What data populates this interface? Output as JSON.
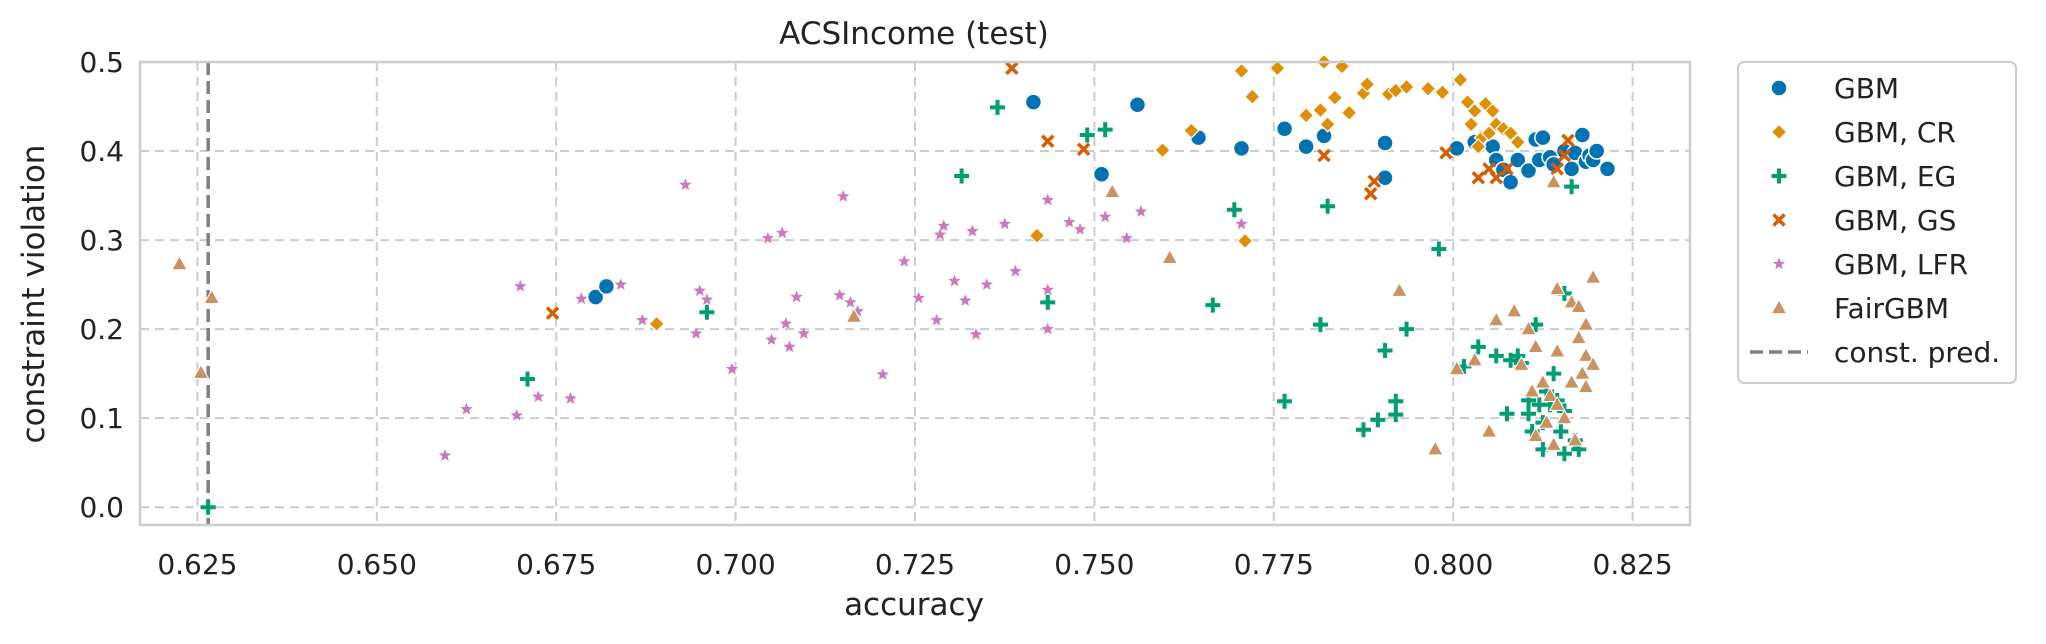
{
  "chart_data": {
    "type": "scatter",
    "title": "ACSIncome (test)",
    "xlabel": "accuracy",
    "ylabel": "constraint violation",
    "xlim": [
      0.617,
      0.833
    ],
    "ylim": [
      -0.02,
      0.5
    ],
    "xticks": [
      "0.625",
      "0.650",
      "0.675",
      "0.700",
      "0.725",
      "0.750",
      "0.775",
      "0.800",
      "0.825"
    ],
    "yticks": [
      "0.0",
      "0.1",
      "0.2",
      "0.3",
      "0.4",
      "0.5"
    ],
    "grid": true,
    "legend_position": "outside-right-top",
    "reference_lines": [
      {
        "name": "const. pred.",
        "orientation": "vertical",
        "x": 0.6265,
        "color": "#7f7f7f",
        "style": "dashed"
      }
    ],
    "series": [
      {
        "name": "GBM",
        "marker": "circle",
        "color": "#0173b2",
        "points": [
          [
            0.6805,
            0.236
          ],
          [
            0.682,
            0.248
          ],
          [
            0.7415,
            0.455
          ],
          [
            0.751,
            0.374
          ],
          [
            0.756,
            0.452
          ],
          [
            0.7645,
            0.415
          ],
          [
            0.7705,
            0.403
          ],
          [
            0.7765,
            0.425
          ],
          [
            0.7795,
            0.405
          ],
          [
            0.782,
            0.417
          ],
          [
            0.7905,
            0.37
          ],
          [
            0.7905,
            0.409
          ],
          [
            0.8005,
            0.403
          ],
          [
            0.803,
            0.41
          ],
          [
            0.8055,
            0.405
          ],
          [
            0.806,
            0.39
          ],
          [
            0.807,
            0.379
          ],
          [
            0.808,
            0.365
          ],
          [
            0.809,
            0.39
          ],
          [
            0.8105,
            0.378
          ],
          [
            0.8115,
            0.413
          ],
          [
            0.812,
            0.39
          ],
          [
            0.8125,
            0.415
          ],
          [
            0.8135,
            0.393
          ],
          [
            0.814,
            0.385
          ],
          [
            0.8155,
            0.4
          ],
          [
            0.8165,
            0.38
          ],
          [
            0.817,
            0.398
          ],
          [
            0.818,
            0.418
          ],
          [
            0.8185,
            0.388
          ],
          [
            0.819,
            0.395
          ],
          [
            0.8195,
            0.39
          ],
          [
            0.82,
            0.4
          ],
          [
            0.8215,
            0.38
          ]
        ]
      },
      {
        "name": "GBM, CR",
        "marker": "diamond",
        "color": "#de8f05",
        "points": [
          [
            0.689,
            0.206
          ],
          [
            0.742,
            0.305
          ],
          [
            0.7595,
            0.401
          ],
          [
            0.7635,
            0.423
          ],
          [
            0.7705,
            0.49
          ],
          [
            0.771,
            0.299
          ],
          [
            0.772,
            0.461
          ],
          [
            0.7755,
            0.493
          ],
          [
            0.7795,
            0.44
          ],
          [
            0.7815,
            0.446
          ],
          [
            0.782,
            0.5
          ],
          [
            0.7825,
            0.43
          ],
          [
            0.7835,
            0.46
          ],
          [
            0.7845,
            0.495
          ],
          [
            0.7855,
            0.443
          ],
          [
            0.7875,
            0.465
          ],
          [
            0.788,
            0.475
          ],
          [
            0.791,
            0.464
          ],
          [
            0.792,
            0.468
          ],
          [
            0.7935,
            0.472
          ],
          [
            0.7965,
            0.47
          ],
          [
            0.7985,
            0.466
          ],
          [
            0.801,
            0.48
          ],
          [
            0.802,
            0.455
          ],
          [
            0.8025,
            0.43
          ],
          [
            0.803,
            0.445
          ],
          [
            0.804,
            0.415
          ],
          [
            0.8045,
            0.453
          ],
          [
            0.805,
            0.42
          ],
          [
            0.8055,
            0.445
          ],
          [
            0.806,
            0.43
          ],
          [
            0.807,
            0.425
          ],
          [
            0.808,
            0.42
          ],
          [
            0.809,
            0.41
          ],
          [
            0.8035,
            0.405
          ]
        ]
      },
      {
        "name": "GBM, EG",
        "marker": "plus",
        "color": "#029e73",
        "points": [
          [
            0.6265,
            0.0
          ],
          [
            0.671,
            0.144
          ],
          [
            0.696,
            0.219
          ],
          [
            0.7315,
            0.372
          ],
          [
            0.7365,
            0.449
          ],
          [
            0.7435,
            0.23
          ],
          [
            0.749,
            0.418
          ],
          [
            0.7515,
            0.424
          ],
          [
            0.7665,
            0.227
          ],
          [
            0.7695,
            0.334
          ],
          [
            0.7765,
            0.119
          ],
          [
            0.7815,
            0.205
          ],
          [
            0.7825,
            0.338
          ],
          [
            0.7875,
            0.087
          ],
          [
            0.7895,
            0.098
          ],
          [
            0.7905,
            0.176
          ],
          [
            0.792,
            0.104
          ],
          [
            0.792,
            0.119
          ],
          [
            0.7935,
            0.2
          ],
          [
            0.798,
            0.29
          ],
          [
            0.8015,
            0.158
          ],
          [
            0.8035,
            0.18
          ],
          [
            0.806,
            0.17
          ],
          [
            0.8075,
            0.105
          ],
          [
            0.808,
            0.165
          ],
          [
            0.809,
            0.17
          ],
          [
            0.8095,
            0.162
          ],
          [
            0.8105,
            0.12
          ],
          [
            0.8105,
            0.105
          ],
          [
            0.811,
            0.085
          ],
          [
            0.8115,
            0.205
          ],
          [
            0.812,
            0.115
          ],
          [
            0.8125,
            0.095
          ],
          [
            0.8125,
            0.065
          ],
          [
            0.813,
            0.13
          ],
          [
            0.8135,
            0.115
          ],
          [
            0.814,
            0.15
          ],
          [
            0.8145,
            0.12
          ],
          [
            0.815,
            0.085
          ],
          [
            0.8155,
            0.108
          ],
          [
            0.8155,
            0.06
          ],
          [
            0.8155,
            0.24
          ],
          [
            0.8165,
            0.36
          ],
          [
            0.817,
            0.075
          ],
          [
            0.8175,
            0.065
          ]
        ]
      },
      {
        "name": "GBM, GS",
        "marker": "x",
        "color": "#d55e00",
        "points": [
          [
            0.6745,
            0.218
          ],
          [
            0.7385,
            0.493
          ],
          [
            0.7435,
            0.411
          ],
          [
            0.7485,
            0.402
          ],
          [
            0.782,
            0.395
          ],
          [
            0.7885,
            0.352
          ],
          [
            0.789,
            0.366
          ],
          [
            0.799,
            0.398
          ],
          [
            0.8035,
            0.37
          ],
          [
            0.805,
            0.38
          ],
          [
            0.806,
            0.37
          ],
          [
            0.8075,
            0.38
          ],
          [
            0.8145,
            0.38
          ],
          [
            0.816,
            0.412
          ],
          [
            0.8155,
            0.395
          ]
        ]
      },
      {
        "name": "GBM, LFR",
        "marker": "star",
        "color": "#cc78bc",
        "points": [
          [
            0.6595,
            0.058
          ],
          [
            0.6625,
            0.11
          ],
          [
            0.6695,
            0.103
          ],
          [
            0.67,
            0.248
          ],
          [
            0.6725,
            0.124
          ],
          [
            0.677,
            0.122
          ],
          [
            0.6785,
            0.234
          ],
          [
            0.684,
            0.25
          ],
          [
            0.687,
            0.21
          ],
          [
            0.693,
            0.362
          ],
          [
            0.6945,
            0.195
          ],
          [
            0.695,
            0.243
          ],
          [
            0.696,
            0.233
          ],
          [
            0.6995,
            0.155
          ],
          [
            0.7045,
            0.302
          ],
          [
            0.705,
            0.188
          ],
          [
            0.7065,
            0.308
          ],
          [
            0.707,
            0.206
          ],
          [
            0.7075,
            0.18
          ],
          [
            0.7085,
            0.236
          ],
          [
            0.7095,
            0.195
          ],
          [
            0.7145,
            0.238
          ],
          [
            0.715,
            0.349
          ],
          [
            0.716,
            0.23
          ],
          [
            0.717,
            0.22
          ],
          [
            0.7205,
            0.149
          ],
          [
            0.7235,
            0.276
          ],
          [
            0.7255,
            0.235
          ],
          [
            0.728,
            0.21
          ],
          [
            0.7285,
            0.306
          ],
          [
            0.729,
            0.316
          ],
          [
            0.7305,
            0.254
          ],
          [
            0.732,
            0.232
          ],
          [
            0.733,
            0.31
          ],
          [
            0.7335,
            0.194
          ],
          [
            0.735,
            0.25
          ],
          [
            0.7375,
            0.318
          ],
          [
            0.739,
            0.265
          ],
          [
            0.7435,
            0.345
          ],
          [
            0.7435,
            0.244
          ],
          [
            0.7435,
            0.2
          ],
          [
            0.7465,
            0.32
          ],
          [
            0.748,
            0.312
          ],
          [
            0.7515,
            0.326
          ],
          [
            0.7545,
            0.302
          ],
          [
            0.7565,
            0.332
          ],
          [
            0.7705,
            0.318
          ]
        ]
      },
      {
        "name": "FairGBM",
        "marker": "triangle",
        "color": "#ca9161",
        "points": [
          [
            0.6225,
            0.273
          ],
          [
            0.6255,
            0.151
          ],
          [
            0.627,
            0.235
          ],
          [
            0.7165,
            0.214
          ],
          [
            0.7525,
            0.354
          ],
          [
            0.7605,
            0.28
          ],
          [
            0.7925,
            0.243
          ],
          [
            0.7975,
            0.065
          ],
          [
            0.8005,
            0.155
          ],
          [
            0.803,
            0.165
          ],
          [
            0.805,
            0.085
          ],
          [
            0.806,
            0.21
          ],
          [
            0.8085,
            0.22
          ],
          [
            0.8095,
            0.16
          ],
          [
            0.8105,
            0.2
          ],
          [
            0.811,
            0.13
          ],
          [
            0.8115,
            0.18
          ],
          [
            0.8115,
            0.08
          ],
          [
            0.8125,
            0.14
          ],
          [
            0.813,
            0.095
          ],
          [
            0.8135,
            0.125
          ],
          [
            0.814,
            0.365
          ],
          [
            0.814,
            0.07
          ],
          [
            0.8145,
            0.245
          ],
          [
            0.8145,
            0.175
          ],
          [
            0.8145,
            0.115
          ],
          [
            0.8155,
            0.1
          ],
          [
            0.8165,
            0.23
          ],
          [
            0.8165,
            0.14
          ],
          [
            0.817,
            0.075
          ],
          [
            0.8175,
            0.225
          ],
          [
            0.8175,
            0.19
          ],
          [
            0.818,
            0.15
          ],
          [
            0.8185,
            0.17
          ],
          [
            0.8185,
            0.205
          ],
          [
            0.8185,
            0.135
          ],
          [
            0.8195,
            0.258
          ],
          [
            0.8195,
            0.16
          ]
        ]
      }
    ]
  }
}
